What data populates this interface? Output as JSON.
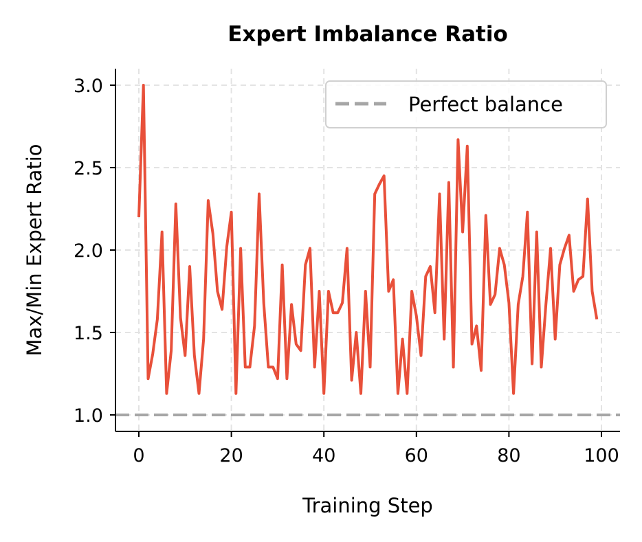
{
  "chart_data": {
    "type": "line",
    "title": "Expert Imbalance Ratio",
    "xlabel": "Training Step",
    "ylabel": "Max/Min Expert Ratio",
    "xlim": [
      -5,
      104
    ],
    "ylim": [
      0.9,
      3.1
    ],
    "xticks": [
      0,
      20,
      40,
      60,
      80,
      100
    ],
    "yticks": [
      1.0,
      1.5,
      2.0,
      2.5,
      3.0
    ],
    "xtick_labels": [
      "0",
      "20",
      "40",
      "60",
      "80",
      "100"
    ],
    "ytick_labels": [
      "1.0",
      "1.5",
      "2.0",
      "2.5",
      "3.0"
    ],
    "grid": true,
    "legend_position": "top-right",
    "series": [
      {
        "color": "#e8503a",
        "x": [
          0,
          1,
          2,
          3,
          4,
          5,
          6,
          7,
          8,
          9,
          10,
          11,
          12,
          13,
          14,
          15,
          16,
          17,
          18,
          19,
          20,
          21,
          22,
          23,
          24,
          25,
          26,
          27,
          28,
          29,
          30,
          31,
          32,
          33,
          34,
          35,
          36,
          37,
          38,
          39,
          40,
          41,
          42,
          43,
          44,
          45,
          46,
          47,
          48,
          49,
          50,
          51,
          52,
          53,
          54,
          55,
          56,
          57,
          58,
          59,
          60,
          61,
          62,
          63,
          64,
          65,
          66,
          67,
          68,
          69,
          70,
          71,
          72,
          73,
          74,
          75,
          76,
          77,
          78,
          79,
          80,
          81,
          82,
          83,
          84,
          85,
          86,
          87,
          88,
          89,
          90,
          91,
          92,
          93,
          94,
          95,
          96,
          97,
          98,
          99
        ],
        "y": [
          2.2,
          3.0,
          1.22,
          1.37,
          1.58,
          2.11,
          1.13,
          1.39,
          2.28,
          1.59,
          1.36,
          1.9,
          1.36,
          1.13,
          1.46,
          2.3,
          2.1,
          1.75,
          1.64,
          2.02,
          2.23,
          1.13,
          2.01,
          1.29,
          1.29,
          1.54,
          2.34,
          1.68,
          1.29,
          1.29,
          1.22,
          1.91,
          1.22,
          1.67,
          1.43,
          1.39,
          1.91,
          2.01,
          1.29,
          1.75,
          1.13,
          1.75,
          1.62,
          1.62,
          1.68,
          2.01,
          1.21,
          1.5,
          1.13,
          1.75,
          1.29,
          2.34,
          2.4,
          2.45,
          1.75,
          1.82,
          1.13,
          1.46,
          1.13,
          1.75,
          1.6,
          1.36,
          1.84,
          1.9,
          1.62,
          2.34,
          1.46,
          2.41,
          1.29,
          2.67,
          2.11,
          2.63,
          1.43,
          1.54,
          1.27,
          2.21,
          1.67,
          1.73,
          2.01,
          1.91,
          1.68,
          1.13,
          1.67,
          1.84,
          2.23,
          1.31,
          2.11,
          1.29,
          1.67,
          2.01,
          1.46,
          1.91,
          2.01,
          2.09,
          1.75,
          1.82,
          1.84,
          2.31,
          1.75,
          1.58
        ]
      },
      {
        "name": "Perfect balance",
        "type": "hline",
        "y": 1.0,
        "color": "#a6a6a6",
        "style": "dashed"
      }
    ]
  }
}
